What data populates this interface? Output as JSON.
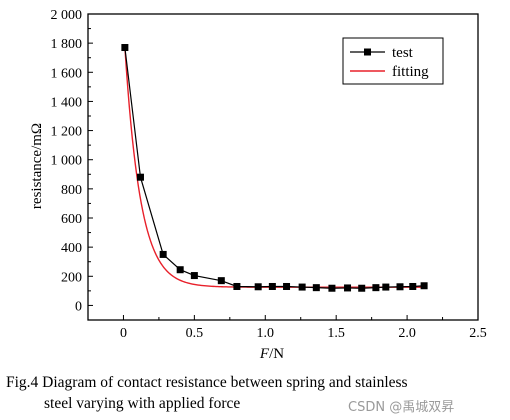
{
  "chart_data": {
    "type": "line",
    "xlabel_italic": "F",
    "xlabel_unit": "/N",
    "ylabel": "resistance/mΩ",
    "xlim": [
      -0.25,
      2.5
    ],
    "ylim": [
      -100,
      2000
    ],
    "x_ticks": [
      0,
      0.5,
      1.0,
      1.5,
      2.0,
      2.5
    ],
    "x_tick_labels": [
      "0",
      "0.5",
      "1.0",
      "1.5",
      "2.0",
      "2.5"
    ],
    "y_ticks": [
      0,
      200,
      400,
      600,
      800,
      1000,
      1200,
      1400,
      1600,
      1800,
      2000
    ],
    "y_tick_labels": [
      "0",
      "200",
      "400",
      "600",
      "800",
      "1 000",
      "1 200",
      "1 400",
      "1 600",
      "1 800",
      "2 000"
    ],
    "grid": false,
    "legend_position": "top-right",
    "series": [
      {
        "name": "test",
        "color": "#000000",
        "marker": "square",
        "x": [
          0.01,
          0.12,
          0.28,
          0.4,
          0.5,
          0.69,
          0.8,
          0.95,
          1.05,
          1.15,
          1.26,
          1.36,
          1.47,
          1.58,
          1.68,
          1.78,
          1.85,
          1.95,
          2.04,
          2.12
        ],
        "y": [
          1770,
          880,
          350,
          245,
          205,
          170,
          130,
          128,
          130,
          130,
          126,
          122,
          118,
          120,
          118,
          122,
          126,
          128,
          130,
          135
        ]
      },
      {
        "name": "fitting",
        "color": "#e8202a",
        "marker": "none",
        "fit": {
          "y0": 125,
          "A": 1647,
          "t": 0.11
        }
      }
    ]
  },
  "caption": {
    "line1": "Fig.4 Diagram of contact resistance between spring and stainless",
    "line2": "steel varying with applied force"
  },
  "watermark": "CSDN @禹城双昇"
}
